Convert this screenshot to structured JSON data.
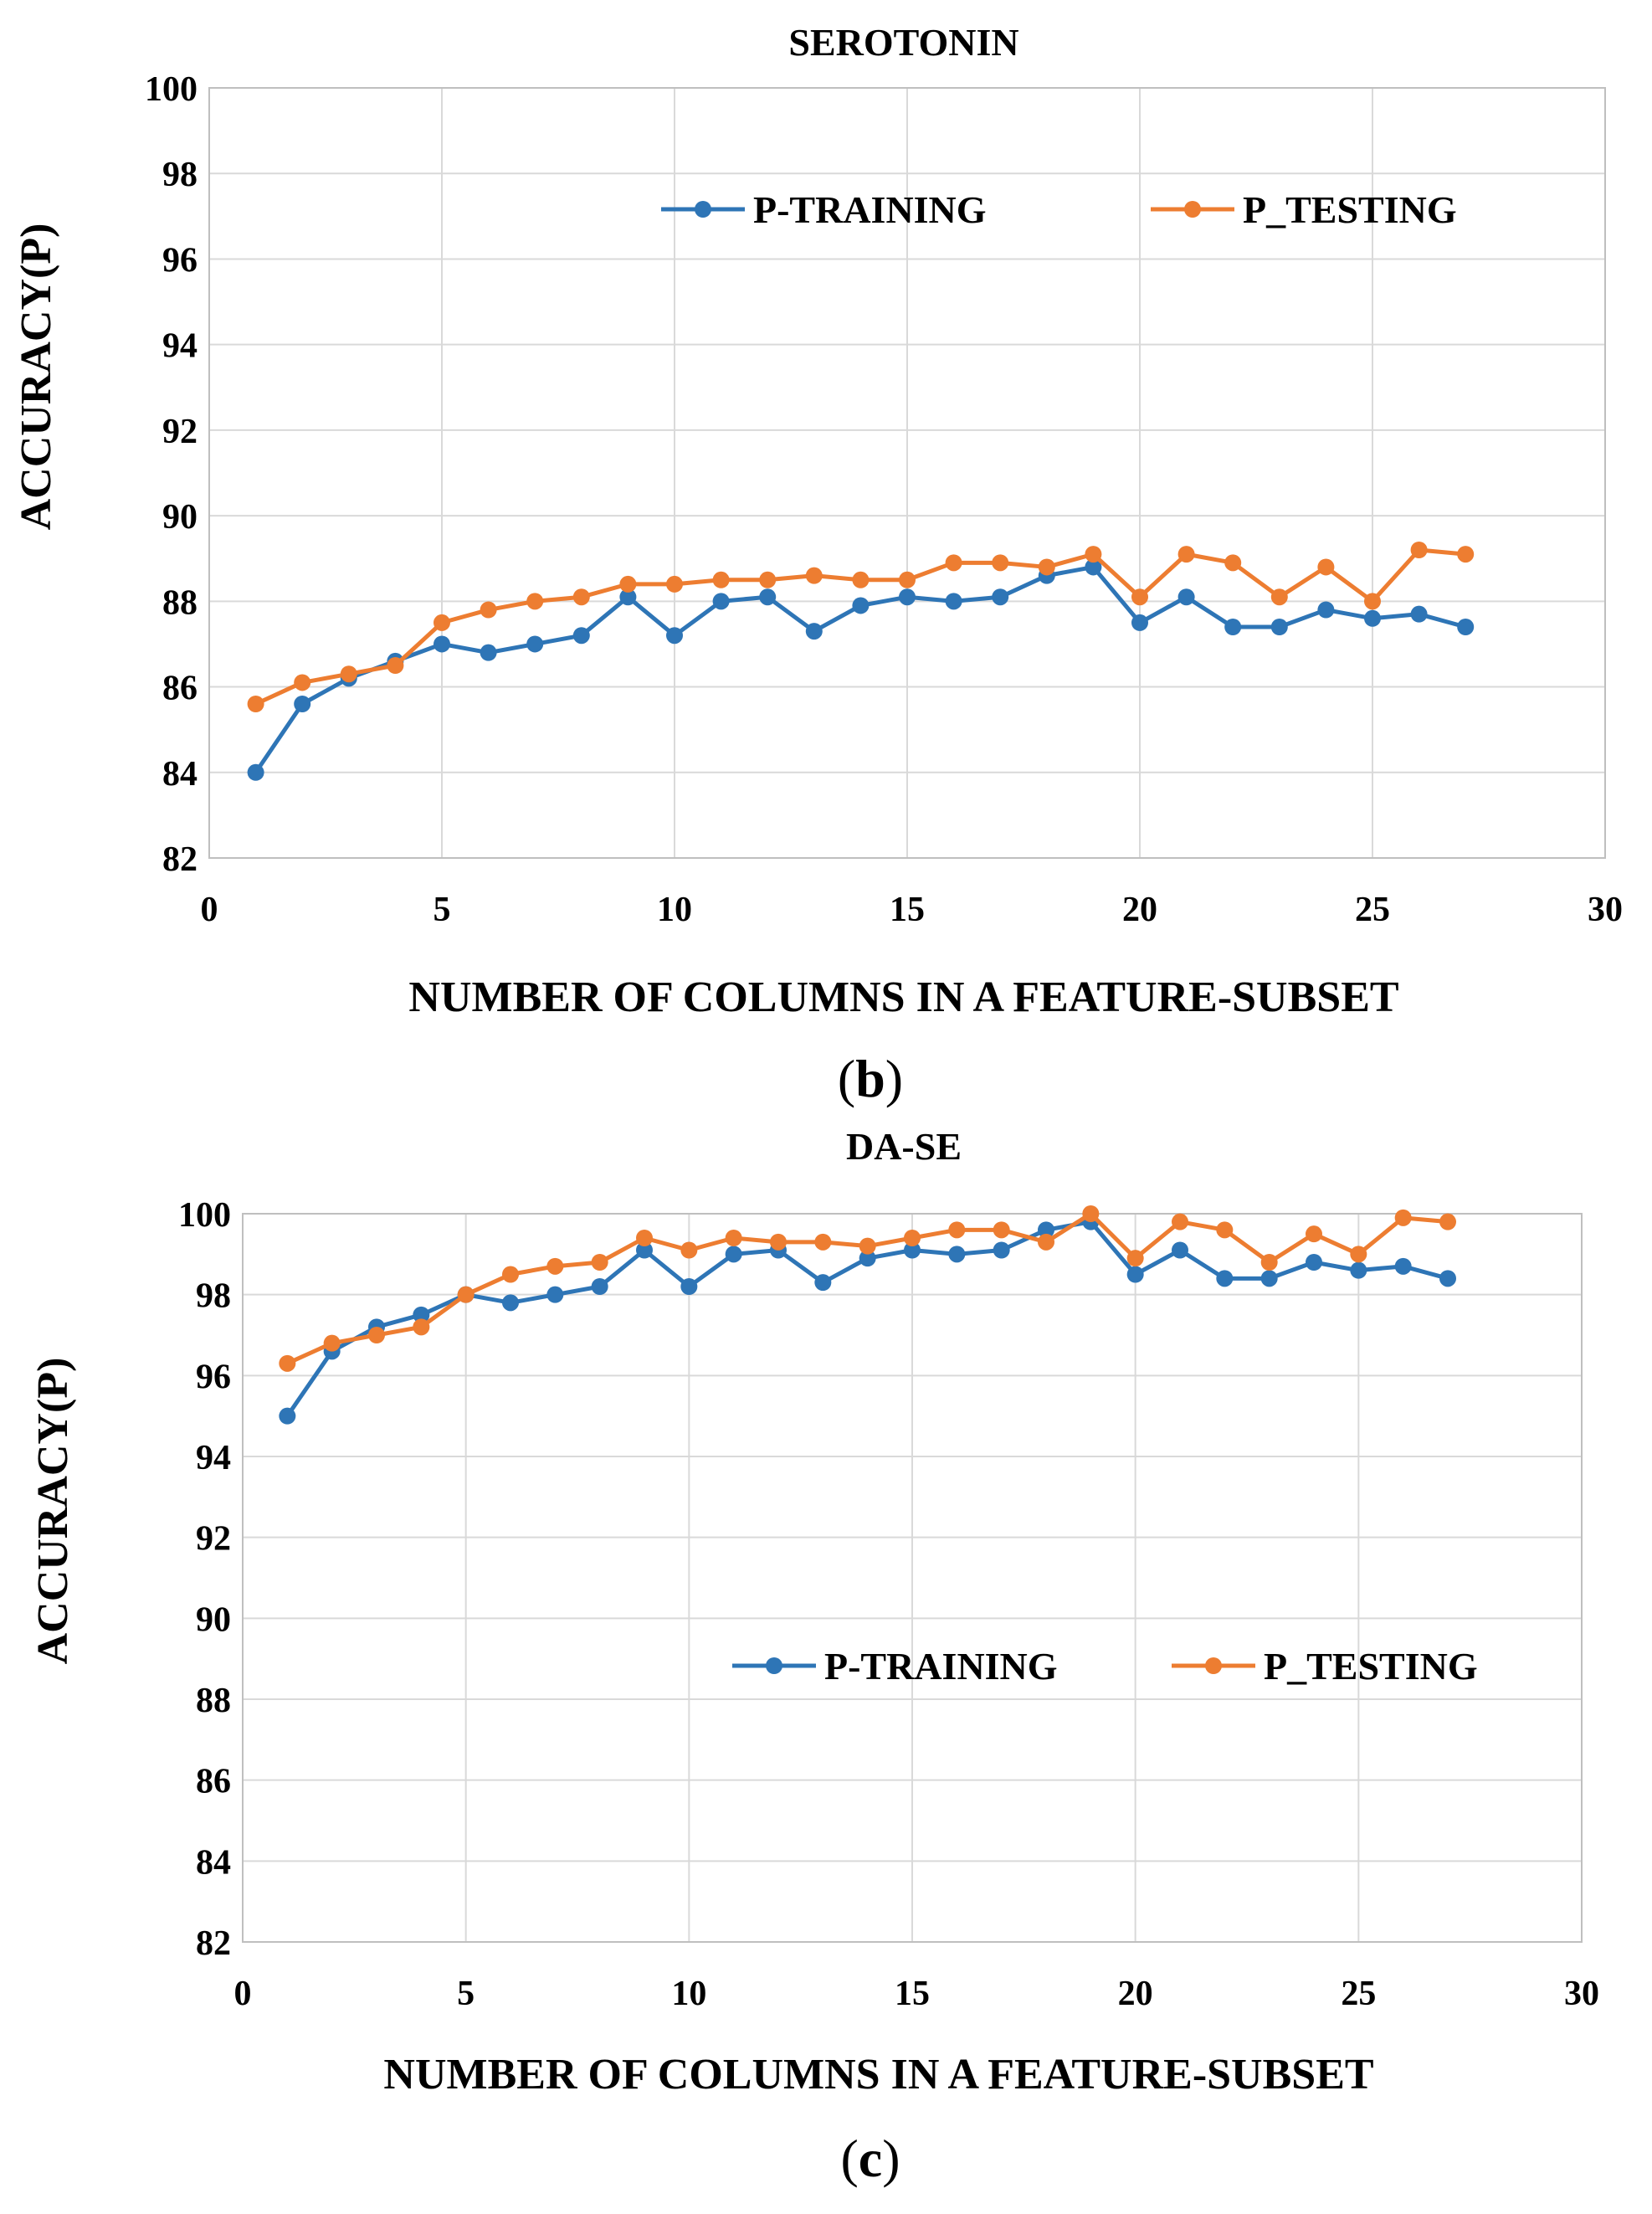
{
  "colors": {
    "training": "#2e75b6",
    "testing": "#ed7d31"
  },
  "chart_data": [
    {
      "type": "line",
      "title": "SEROTONIN",
      "xlabel": "NUMBER OF COLUMNS IN A FEATURE-SUBSET",
      "ylabel": "ACCURACY(P)",
      "panel_letter": "b",
      "xlim": [
        0,
        30
      ],
      "ylim": [
        82,
        100
      ],
      "xticks": [
        0,
        5,
        10,
        15,
        20,
        25,
        30
      ],
      "yticks": [
        82,
        84,
        86,
        88,
        90,
        92,
        94,
        96,
        98,
        100
      ],
      "grid": true,
      "legend": "top-right",
      "x": [
        1,
        2,
        3,
        4,
        5,
        6,
        7,
        8,
        9,
        10,
        11,
        12,
        13,
        14,
        15,
        16,
        17,
        18,
        19,
        20,
        21,
        22,
        23,
        24,
        25,
        26,
        27
      ],
      "series": [
        {
          "name": "P-TRAINING",
          "key": "training",
          "values": [
            84.0,
            85.6,
            86.2,
            86.6,
            87.0,
            86.8,
            87.0,
            87.2,
            88.1,
            87.2,
            88.0,
            88.1,
            87.3,
            87.9,
            88.1,
            88.0,
            88.1,
            88.6,
            88.8,
            87.5,
            88.1,
            87.4,
            87.4,
            87.8,
            87.6,
            87.7,
            87.4
          ]
        },
        {
          "name": "P_TESTING",
          "key": "testing",
          "values": [
            85.6,
            86.1,
            86.3,
            86.5,
            87.5,
            87.8,
            88.0,
            88.1,
            88.4,
            88.4,
            88.5,
            88.5,
            88.6,
            88.5,
            88.5,
            88.9,
            88.9,
            88.8,
            89.1,
            88.1,
            89.1,
            88.9,
            88.1,
            88.8,
            88.0,
            89.2,
            89.1
          ]
        }
      ]
    },
    {
      "type": "line",
      "title": "DA-SE",
      "xlabel": "NUMBER OF COLUMNS IN A FEATURE-SUBSET",
      "ylabel": "ACCURACY(P)",
      "panel_letter": "c",
      "xlim": [
        0,
        30
      ],
      "ylim": [
        82,
        100
      ],
      "xticks": [
        0,
        5,
        10,
        15,
        20,
        25,
        30
      ],
      "yticks": [
        82,
        84,
        86,
        88,
        90,
        92,
        94,
        96,
        98,
        100
      ],
      "grid": true,
      "legend": "center-right",
      "x": [
        1,
        2,
        3,
        4,
        5,
        6,
        7,
        8,
        9,
        10,
        11,
        12,
        13,
        14,
        15,
        16,
        17,
        18,
        19,
        20,
        21,
        22,
        23,
        24,
        25,
        26,
        27
      ],
      "series": [
        {
          "name": "P-TRAINING",
          "key": "training",
          "values": [
            95.0,
            96.6,
            97.2,
            97.5,
            98.0,
            97.8,
            98.0,
            98.2,
            99.1,
            98.2,
            99.0,
            99.1,
            98.3,
            98.9,
            99.1,
            99.0,
            99.1,
            99.6,
            99.8,
            98.5,
            99.1,
            98.4,
            98.4,
            98.8,
            98.6,
            98.7,
            98.4
          ]
        },
        {
          "name": "P_TESTING",
          "key": "testing",
          "values": [
            96.3,
            96.8,
            97.0,
            97.2,
            98.0,
            98.5,
            98.7,
            98.8,
            99.4,
            99.1,
            99.4,
            99.3,
            99.3,
            99.2,
            99.4,
            99.6,
            99.6,
            99.3,
            100.0,
            98.9,
            99.8,
            99.6,
            98.8,
            99.5,
            99.0,
            99.9,
            99.8
          ]
        }
      ]
    }
  ]
}
